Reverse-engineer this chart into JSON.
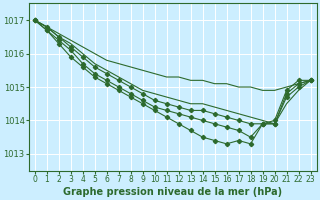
{
  "bg_color": "#cceeff",
  "line_color": "#2d6a2d",
  "grid_color": "#ffffff",
  "title": "Graphe pression niveau de la mer (hPa)",
  "xlim": [
    -0.5,
    23.5
  ],
  "ylim": [
    1012.5,
    1017.5
  ],
  "yticks": [
    1013,
    1014,
    1015,
    1016,
    1017
  ],
  "xticks": [
    0,
    1,
    2,
    3,
    4,
    5,
    6,
    7,
    8,
    9,
    10,
    11,
    12,
    13,
    14,
    15,
    16,
    17,
    18,
    19,
    20,
    21,
    22,
    23
  ],
  "series": [
    {
      "y": [
        1017.0,
        1016.8,
        1016.6,
        1016.4,
        1016.2,
        1016.0,
        1015.8,
        1015.7,
        1015.6,
        1015.5,
        1015.4,
        1015.3,
        1015.3,
        1015.2,
        1015.2,
        1015.1,
        1015.1,
        1015.0,
        1015.0,
        1014.9,
        1014.9,
        1015.0,
        1015.1,
        1015.2
      ],
      "markers": false
    },
    {
      "y": [
        1017.0,
        1016.8,
        1016.5,
        1016.3,
        1016.0,
        1015.7,
        1015.5,
        1015.3,
        1015.1,
        1014.9,
        1014.8,
        1014.7,
        1014.6,
        1014.5,
        1014.5,
        1014.4,
        1014.3,
        1014.2,
        1014.1,
        1014.0,
        1013.9,
        1014.5,
        1014.9,
        1015.2
      ],
      "markers": false
    },
    {
      "y": [
        1017.0,
        1016.8,
        1016.5,
        1016.2,
        1015.9,
        1015.6,
        1015.4,
        1015.2,
        1015.0,
        1014.8,
        1014.6,
        1014.5,
        1014.4,
        1014.3,
        1014.3,
        1014.2,
        1014.1,
        1014.0,
        1013.9,
        1013.9,
        1013.9,
        1014.7,
        1015.0,
        1015.2
      ],
      "markers": true
    },
    {
      "y": [
        1017.0,
        1016.7,
        1016.4,
        1016.1,
        1015.7,
        1015.4,
        1015.2,
        1015.0,
        1014.8,
        1014.6,
        1014.4,
        1014.3,
        1014.2,
        1014.1,
        1014.0,
        1013.9,
        1013.8,
        1013.7,
        1013.5,
        1013.9,
        1013.9,
        1014.8,
        1015.1,
        1015.2
      ],
      "markers": true
    },
    {
      "y": [
        1017.0,
        1016.7,
        1016.3,
        1015.9,
        1015.6,
        1015.3,
        1015.1,
        1014.9,
        1014.7,
        1014.5,
        1014.3,
        1014.1,
        1013.9,
        1013.7,
        1013.5,
        1013.4,
        1013.3,
        1013.4,
        1013.3,
        1013.9,
        1014.0,
        1014.9,
        1015.2,
        1015.2
      ],
      "markers": true
    }
  ]
}
